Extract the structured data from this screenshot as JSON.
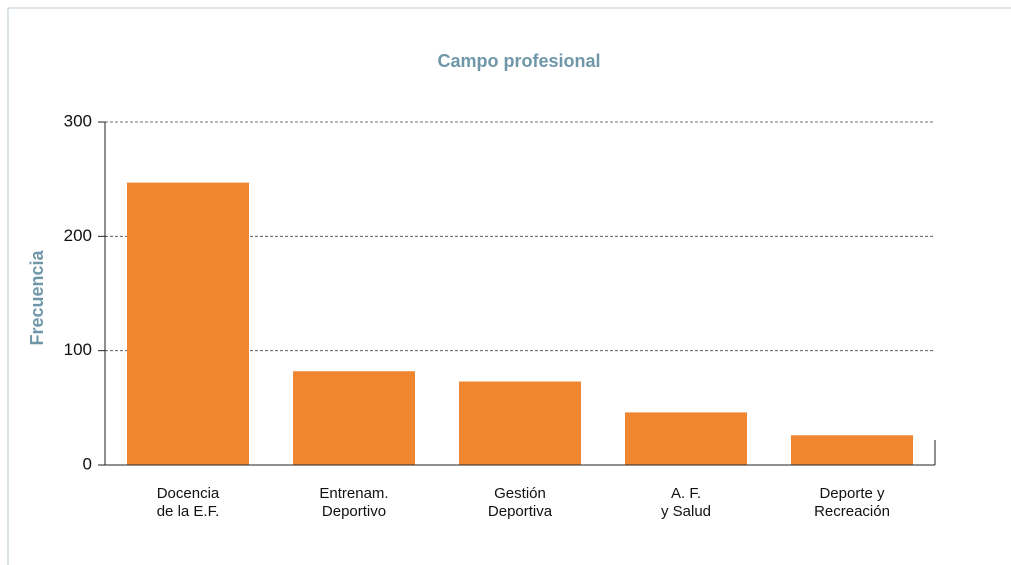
{
  "chart_data": {
    "type": "bar",
    "title": "Campo profesional",
    "y_label": "Frecuencia",
    "categories": [
      "Docencia\nde la E.F.",
      "Entrenam.\nDeportivo",
      "Gestión\nDeportiva",
      "A. F.\ny Salud",
      "Deporte y\nRecreación"
    ],
    "values": [
      247,
      82,
      73,
      46,
      26
    ],
    "color": "#f0862f",
    "ylim": [
      0,
      300
    ],
    "yticks": [
      0,
      100,
      200,
      300
    ],
    "grid": true
  }
}
